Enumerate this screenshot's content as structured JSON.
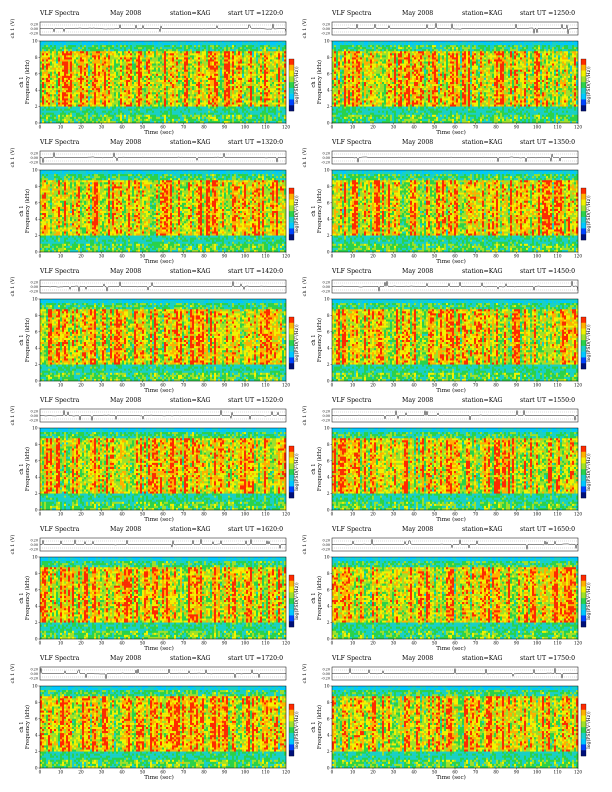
{
  "page": {
    "title_prefix": "VLF Spectra",
    "month_label": "May 2008",
    "station_label": "station=KAG",
    "start_prefix": "start  UT"
  },
  "axes": {
    "waveform_ylabel": "ch 1 (V)",
    "waveform_ticks": [
      "0.20",
      "0.00",
      "-0.20"
    ],
    "spectrogram_ylabel": "Frequency  (kHz)",
    "spectrogram_ylabel_ch": "ch 1",
    "freq_ticks": [
      "0",
      "2",
      "4",
      "6",
      "8",
      "10"
    ],
    "time_ticks": [
      "0",
      "10",
      "20",
      "30",
      "40",
      "50",
      "60",
      "70",
      "80",
      "90",
      "100",
      "110",
      "120"
    ],
    "xlabel": "Time  (sec)",
    "colorbar_label": "log(PSD(V²/Hz))"
  },
  "colors": {
    "scale": [
      "#00107a",
      "#0044ff",
      "#00c8ff",
      "#19d0c8",
      "#2bd24a",
      "#9ee02a",
      "#f2f200",
      "#ffb000",
      "#ff2a00",
      "#c00000"
    ]
  },
  "chart_data": [
    {
      "type": "heatmap",
      "start_ut": "1220:0",
      "title": "VLF Spectra  May 2008  station=KAG  start UT =1220:0",
      "xlabel": "Time (sec)",
      "ylabel": "Frequency (kHz)",
      "xlim": [
        0,
        120
      ],
      "ylim": [
        0,
        10
      ],
      "grid": false
    },
    {
      "type": "heatmap",
      "start_ut": "1250:0",
      "title": "VLF Spectra  May 2008  station=KAG  start UT =1250:0",
      "xlabel": "Time (sec)",
      "ylabel": "Frequency (kHz)",
      "xlim": [
        0,
        120
      ],
      "ylim": [
        0,
        10
      ],
      "grid": false
    },
    {
      "type": "heatmap",
      "start_ut": "1320:0",
      "title": "VLF Spectra  May 2008  station=KAG  start UT =1320:0",
      "xlabel": "Time (sec)",
      "ylabel": "Frequency (kHz)",
      "xlim": [
        0,
        120
      ],
      "ylim": [
        0,
        10
      ],
      "grid": false
    },
    {
      "type": "heatmap",
      "start_ut": "1350:0",
      "title": "VLF Spectra  May 2008  station=KAG  start UT =1350:0",
      "xlabel": "Time (sec)",
      "ylabel": "Frequency (kHz)",
      "xlim": [
        0,
        120
      ],
      "ylim": [
        0,
        10
      ],
      "grid": false
    },
    {
      "type": "heatmap",
      "start_ut": "1420:0",
      "title": "VLF Spectra  May 2008  station=KAG  start UT =1420:0",
      "xlabel": "Time (sec)",
      "ylabel": "Frequency (kHz)",
      "xlim": [
        0,
        120
      ],
      "ylim": [
        0,
        10
      ],
      "grid": false
    },
    {
      "type": "heatmap",
      "start_ut": "1450:0",
      "title": "VLF Spectra  May 2008  station=KAG  start UT =1450:0",
      "xlabel": "Time (sec)",
      "ylabel": "Frequency (kHz)",
      "xlim": [
        0,
        120
      ],
      "ylim": [
        0,
        10
      ],
      "grid": false
    },
    {
      "type": "heatmap",
      "start_ut": "1520:0",
      "title": "VLF Spectra  May 2008  station=KAG  start UT =1520:0",
      "xlabel": "Time (sec)",
      "ylabel": "Frequency (kHz)",
      "xlim": [
        0,
        120
      ],
      "ylim": [
        0,
        10
      ],
      "grid": false
    },
    {
      "type": "heatmap",
      "start_ut": "1550:0",
      "title": "VLF Spectra  May 2008  station=KAG  start UT =1550:0",
      "xlabel": "Time (sec)",
      "ylabel": "Frequency (kHz)",
      "xlim": [
        0,
        120
      ],
      "ylim": [
        0,
        10
      ],
      "grid": false
    },
    {
      "type": "heatmap",
      "start_ut": "1620:0",
      "title": "VLF Spectra  May 2008  station=KAG  start UT =1620:0",
      "xlabel": "Time (sec)",
      "ylabel": "Frequency (kHz)",
      "xlim": [
        0,
        120
      ],
      "ylim": [
        0,
        10
      ],
      "grid": false
    },
    {
      "type": "heatmap",
      "start_ut": "1650:0",
      "title": "VLF Spectra  May 2008  station=KAG  start UT =1650:0",
      "xlabel": "Time (sec)",
      "ylabel": "Frequency (kHz)",
      "xlim": [
        0,
        120
      ],
      "ylim": [
        0,
        10
      ],
      "grid": false
    },
    {
      "type": "heatmap",
      "start_ut": "1720:0",
      "title": "VLF Spectra  May 2008  station=KAG  start UT =1720:0",
      "xlabel": "Time (sec)",
      "ylabel": "Frequency (kHz)",
      "xlim": [
        0,
        120
      ],
      "ylim": [
        0,
        10
      ],
      "grid": false
    },
    {
      "type": "heatmap",
      "start_ut": "1750:0",
      "title": "VLF Spectra  May 2008  station=KAG  start UT =1750:0",
      "xlabel": "Time (sec)",
      "ylabel": "Frequency (kHz)",
      "xlim": [
        0,
        120
      ],
      "ylim": [
        0,
        10
      ],
      "grid": false
    }
  ]
}
